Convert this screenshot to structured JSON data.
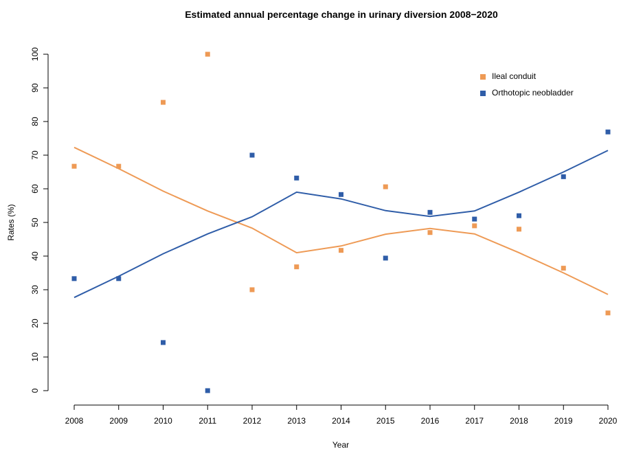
{
  "chart_data": {
    "type": "scatter",
    "title": "Estimated annual percentage change in urinary diversion 2008−2020",
    "xlabel": "Year",
    "ylabel": "Rates (%)",
    "x": [
      2008,
      2009,
      2010,
      2011,
      2012,
      2013,
      2014,
      2015,
      2016,
      2017,
      2018,
      2019,
      2020
    ],
    "xlim": [
      2008,
      2020
    ],
    "ylim": [
      0,
      100
    ],
    "yticks": [
      0,
      10,
      20,
      30,
      40,
      50,
      60,
      70,
      80,
      90,
      100
    ],
    "grid": false,
    "legend_position": "top-right",
    "series": [
      {
        "name": "Ileal conduit",
        "color": "#EE9A55",
        "points": [
          66.7,
          66.7,
          85.7,
          100,
          30,
          36.8,
          41.7,
          60.6,
          47,
          49,
          48,
          36.4,
          23.1
        ],
        "trend": [
          72.3,
          66,
          59.3,
          53.4,
          48.3,
          41,
          43,
          46.5,
          48.2,
          46.6,
          41,
          35,
          28.6
        ]
      },
      {
        "name": "Orthotopic neobladder",
        "color": "#2F5DA8",
        "points": [
          33.3,
          33.3,
          14.3,
          0,
          70,
          63.2,
          58.3,
          39.4,
          53,
          51,
          52,
          63.6,
          76.9
        ],
        "trend": [
          27.7,
          34,
          40.7,
          46.6,
          51.7,
          59,
          57,
          53.5,
          51.8,
          53.4,
          59,
          65,
          71.4
        ]
      }
    ]
  }
}
